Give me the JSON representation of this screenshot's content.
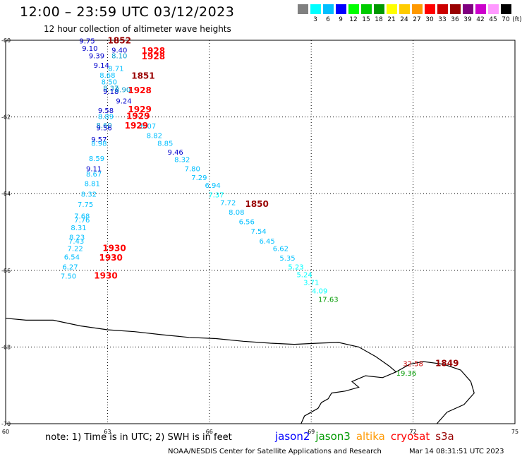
{
  "header": {
    "title": "12:00 – 23:59 UTC 03/12/2023",
    "subtitle": "12 hour collection of altimeter wave heights"
  },
  "colorbar": {
    "unit": "(ft)",
    "swatches": [
      {
        "color": "#808080",
        "label": ""
      },
      {
        "color": "#00ffff",
        "label": "3"
      },
      {
        "color": "#00bfff",
        "label": "6"
      },
      {
        "color": "#0000ff",
        "label": "9"
      },
      {
        "color": "#00ff00",
        "label": "12"
      },
      {
        "color": "#00cc00",
        "label": "15"
      },
      {
        "color": "#009900",
        "label": "18"
      },
      {
        "color": "#ffff00",
        "label": "21"
      },
      {
        "color": "#ffcc00",
        "label": "24"
      },
      {
        "color": "#ff9900",
        "label": "27"
      },
      {
        "color": "#ff0000",
        "label": "30"
      },
      {
        "color": "#cc0000",
        "label": "33"
      },
      {
        "color": "#990000",
        "label": "36"
      },
      {
        "color": "#800080",
        "label": "39"
      },
      {
        "color": "#cc00cc",
        "label": "42"
      },
      {
        "color": "#ff99ff",
        "label": "45"
      },
      {
        "color": "#000000",
        "label": "70"
      }
    ]
  },
  "axes": {
    "lat_labels": [
      "-60",
      "-62",
      "-64",
      "-66",
      "-68",
      "-70"
    ],
    "lon_labels": [
      "60",
      "63",
      "66",
      "69",
      "72",
      "75"
    ]
  },
  "map_data": {
    "swh_labels": [
      {
        "v": "9.75",
        "lon": 62.4,
        "lat": -60.08,
        "c": "#0000cc"
      },
      {
        "v": "9.10",
        "lon": 62.48,
        "lat": -60.28,
        "c": "#0000cc"
      },
      {
        "v": "9.39",
        "lon": 62.68,
        "lat": -60.47,
        "c": "#0000cc"
      },
      {
        "v": "9.40",
        "lon": 63.35,
        "lat": -60.32,
        "c": "#0000cc"
      },
      {
        "v": "8.10",
        "lon": 63.35,
        "lat": -60.47,
        "c": "#0099cc"
      },
      {
        "v": "9.14",
        "lon": 62.82,
        "lat": -60.72,
        "c": "#0000cc"
      },
      {
        "v": "8.71",
        "lon": 63.25,
        "lat": -60.8,
        "c": "#00bfff"
      },
      {
        "v": "8.68",
        "lon": 63.0,
        "lat": -60.98,
        "c": "#00bfff"
      },
      {
        "v": "8.50",
        "lon": 63.05,
        "lat": -61.15,
        "c": "#00bfff"
      },
      {
        "v": "8.37",
        "lon": 63.1,
        "lat": -61.32,
        "c": "#0099cc"
      },
      {
        "v": "9.18",
        "lon": 63.1,
        "lat": -61.4,
        "c": "#0000cc"
      },
      {
        "v": "8.90",
        "lon": 63.45,
        "lat": -61.35,
        "c": "#0099cc"
      },
      {
        "v": "9.24",
        "lon": 63.48,
        "lat": -61.65,
        "c": "#0000cc"
      },
      {
        "v": "9.58",
        "lon": 62.95,
        "lat": -61.9,
        "c": "#0000cc"
      },
      {
        "v": "8.89",
        "lon": 62.95,
        "lat": -62.05,
        "c": "#00bfff"
      },
      {
        "v": "8.60",
        "lon": 62.9,
        "lat": -62.28,
        "c": "#0099cc"
      },
      {
        "v": "9.56",
        "lon": 62.9,
        "lat": -62.35,
        "c": "#0000cc"
      },
      {
        "v": "8.07",
        "lon": 64.2,
        "lat": -62.3,
        "c": "#00bfff"
      },
      {
        "v": "8.82",
        "lon": 64.38,
        "lat": -62.55,
        "c": "#00bfff"
      },
      {
        "v": "9.57",
        "lon": 62.75,
        "lat": -62.65,
        "c": "#0000cc"
      },
      {
        "v": "8.98",
        "lon": 62.75,
        "lat": -62.75,
        "c": "#00bfff"
      },
      {
        "v": "8.85",
        "lon": 64.7,
        "lat": -62.75,
        "c": "#00bfff"
      },
      {
        "v": "9.46",
        "lon": 65.0,
        "lat": -62.98,
        "c": "#0000cc"
      },
      {
        "v": "8.32",
        "lon": 65.2,
        "lat": -63.18,
        "c": "#00bfff"
      },
      {
        "v": "8.59",
        "lon": 62.68,
        "lat": -63.15,
        "c": "#00bfff"
      },
      {
        "v": "9.11",
        "lon": 62.6,
        "lat": -63.42,
        "c": "#0000cc"
      },
      {
        "v": "8.67",
        "lon": 62.6,
        "lat": -63.55,
        "c": "#00bfff"
      },
      {
        "v": "7.80",
        "lon": 65.5,
        "lat": -63.42,
        "c": "#00bfff"
      },
      {
        "v": "7.29",
        "lon": 65.7,
        "lat": -63.65,
        "c": "#00bfff"
      },
      {
        "v": "8.81",
        "lon": 62.55,
        "lat": -63.8,
        "c": "#00bfff"
      },
      {
        "v": "6.94",
        "lon": 66.1,
        "lat": -63.85,
        "c": "#00bfff"
      },
      {
        "v": "8.32",
        "lon": 62.45,
        "lat": -64.08,
        "c": "#00bfff"
      },
      {
        "v": "7.37",
        "lon": 66.2,
        "lat": -64.1,
        "c": "#00ffff"
      },
      {
        "v": "7.72",
        "lon": 66.55,
        "lat": -64.3,
        "c": "#00bfff"
      },
      {
        "v": "7.75",
        "lon": 62.35,
        "lat": -64.35,
        "c": "#00bfff"
      },
      {
        "v": "8.08",
        "lon": 66.8,
        "lat": -64.55,
        "c": "#00bfff"
      },
      {
        "v": "7.68",
        "lon": 62.25,
        "lat": -64.65,
        "c": "#00bfff"
      },
      {
        "v": "7.76",
        "lon": 62.25,
        "lat": -64.75,
        "c": "#00bfff"
      },
      {
        "v": "6.56",
        "lon": 67.1,
        "lat": -64.8,
        "c": "#00bfff"
      },
      {
        "v": "8.31",
        "lon": 62.15,
        "lat": -64.95,
        "c": "#00bfff"
      },
      {
        "v": "7.54",
        "lon": 67.45,
        "lat": -65.05,
        "c": "#00bfff"
      },
      {
        "v": "8.23",
        "lon": 62.1,
        "lat": -65.2,
        "c": "#00bfff"
      },
      {
        "v": "7.43",
        "lon": 62.08,
        "lat": -65.3,
        "c": "#00bfff"
      },
      {
        "v": "6.45",
        "lon": 67.7,
        "lat": -65.3,
        "c": "#00bfff"
      },
      {
        "v": "7.22",
        "lon": 62.05,
        "lat": -65.5,
        "c": "#00bfff"
      },
      {
        "v": "6.62",
        "lon": 68.1,
        "lat": -65.5,
        "c": "#00bfff"
      },
      {
        "v": "6.54",
        "lon": 61.95,
        "lat": -65.72,
        "c": "#00bfff"
      },
      {
        "v": "5.35",
        "lon": 68.3,
        "lat": -65.75,
        "c": "#00bfff"
      },
      {
        "v": "6.27",
        "lon": 61.9,
        "lat": -65.98,
        "c": "#00bfff"
      },
      {
        "v": "5.23",
        "lon": 68.55,
        "lat": -65.98,
        "c": "#00ffff"
      },
      {
        "v": "5.24",
        "lon": 68.8,
        "lat": -66.18,
        "c": "#00ffff"
      },
      {
        "v": "7.50",
        "lon": 61.85,
        "lat": -66.22,
        "c": "#00bfff"
      },
      {
        "v": "3.71",
        "lon": 69.0,
        "lat": -66.38,
        "c": "#00ffff"
      },
      {
        "v": "4.09",
        "lon": 69.25,
        "lat": -66.6,
        "c": "#00ffff"
      },
      {
        "v": "17.63",
        "lon": 69.5,
        "lat": -66.82,
        "c": "#009900"
      },
      {
        "v": "32.58",
        "lon": 72.0,
        "lat": -68.5,
        "c": "#cc0000"
      },
      {
        "v": "19.36",
        "lon": 71.8,
        "lat": -68.75,
        "c": "#009900"
      }
    ],
    "time_labels": [
      {
        "v": "1852",
        "lon": 63.35,
        "lat": -60.08,
        "c": "#990000"
      },
      {
        "v": "1928",
        "lon": 64.35,
        "lat": -60.35,
        "c": "#ff0000"
      },
      {
        "v": "1928",
        "lon": 64.35,
        "lat": -60.5,
        "c": "#ff0000"
      },
      {
        "v": "1851",
        "lon": 64.05,
        "lat": -61.0,
        "c": "#990000"
      },
      {
        "v": "1928",
        "lon": 63.95,
        "lat": -61.38,
        "c": "#ff0000"
      },
      {
        "v": "1929",
        "lon": 63.95,
        "lat": -61.88,
        "c": "#ff0000"
      },
      {
        "v": "1929",
        "lon": 63.9,
        "lat": -62.05,
        "c": "#ff0000"
      },
      {
        "v": "1929",
        "lon": 63.85,
        "lat": -62.3,
        "c": "#ff0000"
      },
      {
        "v": "1850",
        "lon": 67.4,
        "lat": -64.35,
        "c": "#990000"
      },
      {
        "v": "1930",
        "lon": 63.2,
        "lat": -65.5,
        "c": "#ff0000"
      },
      {
        "v": "1930",
        "lon": 63.1,
        "lat": -65.75,
        "c": "#ff0000"
      },
      {
        "v": "1930",
        "lon": 62.95,
        "lat": -66.22,
        "c": "#ff0000"
      },
      {
        "v": "1849",
        "lon": 73.0,
        "lat": -68.5,
        "c": "#990000"
      }
    ]
  },
  "footer": {
    "note": "note: 1) Time is in UTC; 2) SWH is in feet",
    "satellites": [
      {
        "name": "jason2",
        "color": "#0000ff"
      },
      {
        "name": "jason3",
        "color": "#009900"
      },
      {
        "name": "altika",
        "color": "#ff9900"
      },
      {
        "name": "cryosat",
        "color": "#ff0000"
      },
      {
        "name": "s3a",
        "color": "#990000"
      }
    ],
    "credit": "NOAA/NESDIS Center for Satellite Applications and Research",
    "timestamp": "Mar 14 08:31:51 UTC 2023"
  }
}
